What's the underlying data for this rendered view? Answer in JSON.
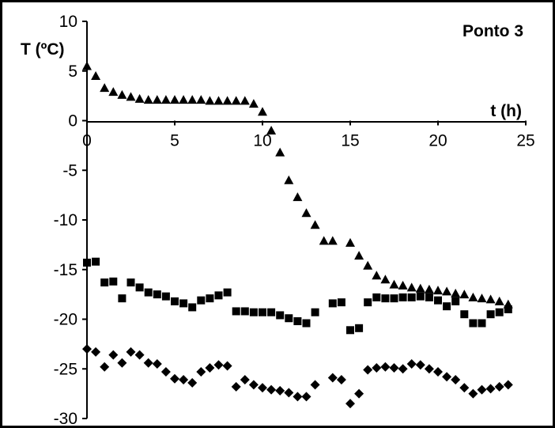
{
  "chart_data": {
    "type": "scatter",
    "title": "Ponto 3",
    "xlabel": "t (h)",
    "ylabel": "T (ºC)",
    "xlim": [
      0,
      25
    ],
    "ylim": [
      -30,
      10
    ],
    "x_ticks": [
      "0",
      "5",
      "10",
      "15",
      "20",
      "25"
    ],
    "y_ticks": [
      "10",
      "5",
      "0",
      "-5",
      "-10",
      "-15",
      "-20",
      "-25",
      "-30"
    ],
    "grid": false,
    "legend": "none",
    "colors": {
      "marker": "#000000",
      "axis": "#000000",
      "background": "#ffffff"
    },
    "series": [
      {
        "marker": "triangle",
        "x": [
          0,
          0.5,
          1,
          1.5,
          2,
          2.5,
          3,
          3.5,
          4,
          4.5,
          5,
          5.5,
          6,
          6.5,
          7,
          7.5,
          8,
          8.5,
          9,
          9.5,
          10,
          10.5,
          11,
          11.5,
          12,
          12.5,
          13,
          13.5,
          14,
          15,
          15.5,
          16,
          16.5,
          17,
          17.5,
          18,
          18.5,
          19,
          19.5,
          20,
          20.5,
          21,
          21.5,
          22,
          22.5,
          23,
          23.5,
          24
        ],
        "y": [
          5.5,
          4.5,
          3.3,
          2.9,
          2.6,
          2.4,
          2.2,
          2.1,
          2.1,
          2.1,
          2.1,
          2.1,
          2.1,
          2.1,
          2.0,
          2.0,
          2.0,
          2.0,
          2.0,
          1.7,
          0.9,
          -1.0,
          -3.2,
          -6.0,
          -7.7,
          -9.3,
          -10.5,
          -12.1,
          -12.1,
          -12.3,
          -13.6,
          -14.6,
          -15.6,
          -16.0,
          -16.5,
          -16.6,
          -16.8,
          -16.9,
          -17.0,
          -17.1,
          -17.2,
          -17.4,
          -17.5,
          -17.8,
          -17.9,
          -18.0,
          -18.2,
          -18.5
        ]
      },
      {
        "marker": "square",
        "x": [
          0,
          0.5,
          1,
          1.5,
          2,
          2.5,
          3,
          3.5,
          4,
          4.5,
          5,
          5.5,
          6,
          6.5,
          7,
          7.5,
          8,
          8.5,
          9,
          9.5,
          10,
          10.5,
          11,
          11.5,
          12,
          12.5,
          13,
          14,
          14.5,
          15,
          15.5,
          16,
          16.5,
          17,
          17.5,
          18,
          18.5,
          19,
          19.5,
          20,
          20.5,
          21,
          21.5,
          22,
          22.5,
          23,
          23.5,
          24
        ],
        "y": [
          -14.3,
          -14.2,
          -16.3,
          -16.2,
          -17.9,
          -16.3,
          -16.8,
          -17.3,
          -17.5,
          -17.7,
          -18.2,
          -18.4,
          -18.8,
          -18.1,
          -17.9,
          -17.6,
          -17.3,
          -19.2,
          -19.2,
          -19.3,
          -19.3,
          -19.3,
          -19.6,
          -19.9,
          -20.2,
          -20.4,
          -19.3,
          -18.4,
          -18.3,
          -21.1,
          -20.9,
          -18.3,
          -17.8,
          -17.9,
          -17.9,
          -17.8,
          -17.8,
          -17.7,
          -17.8,
          -18.1,
          -18.7,
          -18.2,
          -19.5,
          -20.4,
          -20.4,
          -19.5,
          -19.3,
          -19.0
        ]
      },
      {
        "marker": "diamond",
        "x": [
          0,
          0.5,
          1,
          1.5,
          2,
          2.5,
          3,
          3.5,
          4,
          4.5,
          5,
          5.5,
          6,
          6.5,
          7,
          7.5,
          8,
          8.5,
          9,
          9.5,
          10,
          10.5,
          11,
          11.5,
          12,
          12.5,
          13,
          14,
          14.5,
          15,
          15.5,
          16,
          16.5,
          17,
          17.5,
          18,
          18.5,
          19,
          19.5,
          20,
          20.5,
          21,
          21.5,
          22,
          22.5,
          23,
          23.5,
          24
        ],
        "y": [
          -23.0,
          -23.3,
          -24.8,
          -23.6,
          -24.4,
          -23.3,
          -23.6,
          -24.4,
          -24.5,
          -25.3,
          -26.0,
          -26.1,
          -26.4,
          -25.3,
          -24.9,
          -24.6,
          -24.7,
          -26.8,
          -26.1,
          -26.6,
          -26.9,
          -27.1,
          -27.2,
          -27.4,
          -27.8,
          -27.8,
          -26.6,
          -25.9,
          -26.1,
          -28.5,
          -27.5,
          -25.1,
          -24.9,
          -24.8,
          -24.9,
          -25.0,
          -24.5,
          -24.6,
          -25.0,
          -25.3,
          -25.8,
          -26.1,
          -26.9,
          -27.5,
          -27.1,
          -27.0,
          -26.8,
          -26.6
        ]
      }
    ]
  }
}
